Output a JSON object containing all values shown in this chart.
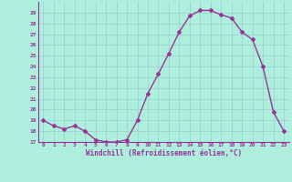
{
  "x": [
    0,
    1,
    2,
    3,
    4,
    5,
    6,
    7,
    8,
    9,
    10,
    11,
    12,
    13,
    14,
    15,
    16,
    17,
    18,
    19,
    20,
    21,
    22,
    23
  ],
  "y": [
    19,
    18.5,
    18.2,
    18.5,
    18.0,
    17.2,
    17.0,
    17.0,
    17.2,
    19.0,
    21.5,
    23.3,
    25.2,
    27.2,
    28.7,
    29.2,
    29.2,
    28.8,
    28.5,
    27.2,
    26.5,
    24.0,
    19.8,
    18.0
  ],
  "line_color": "#993399",
  "marker": "D",
  "markersize": 2,
  "linewidth": 1.0,
  "bg_color": "#aeeedd",
  "grid_color": "#99cccc",
  "xlabel": "Windchill (Refroidissement éolien,°C)",
  "xlabel_color": "#993399",
  "tick_color": "#993399",
  "axis_line_color": "#993399",
  "ylim": [
    17,
    30
  ],
  "yticks": [
    17,
    18,
    19,
    20,
    21,
    22,
    23,
    24,
    25,
    26,
    27,
    28,
    29
  ],
  "xticks": [
    0,
    1,
    2,
    3,
    4,
    5,
    6,
    7,
    8,
    9,
    10,
    11,
    12,
    13,
    14,
    15,
    16,
    17,
    18,
    19,
    20,
    21,
    22,
    23
  ],
  "font_family": "monospace"
}
